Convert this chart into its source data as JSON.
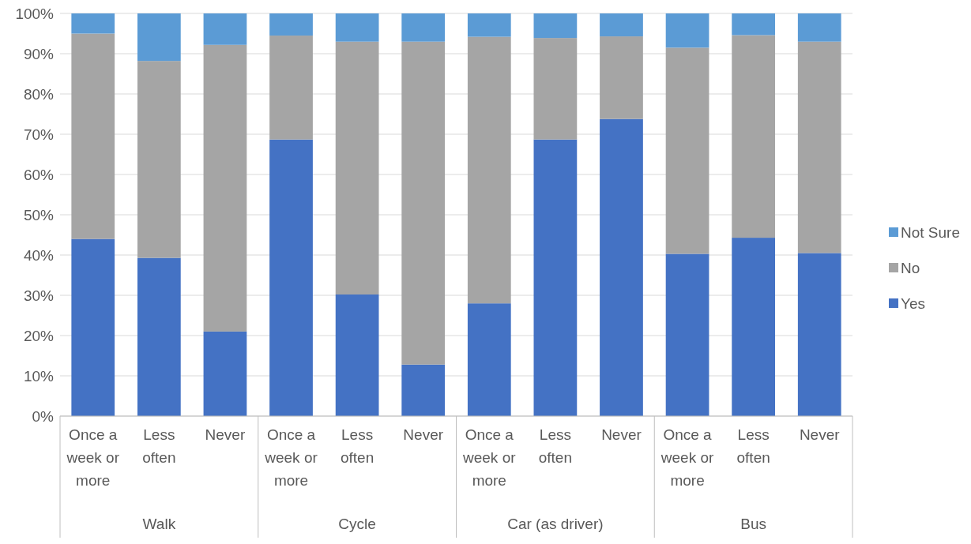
{
  "chart_data": {
    "type": "bar",
    "stacked": true,
    "categories": [
      "Once a week or more",
      "Less often",
      "Never",
      "Once a week or more",
      "Less often",
      "Never",
      "Once a week or more",
      "Less often",
      "Never",
      "Once a week or more",
      "Less often",
      "Never"
    ],
    "series": [
      {
        "name": "Yes",
        "color": "#4472c4",
        "values": [
          44,
          39.3,
          21,
          68.7,
          30.2,
          12.8,
          28,
          68.7,
          73.8,
          40.3,
          44.3,
          40.5
        ]
      },
      {
        "name": "No",
        "color": "#a5a5a5",
        "values": [
          51,
          48.9,
          71.2,
          25.8,
          62.8,
          80.2,
          66.2,
          25.2,
          20.5,
          51.2,
          50.3,
          52.5
        ]
      },
      {
        "name": "Not Sure",
        "color": "#5b9bd5",
        "values": [
          5,
          11.8,
          7.8,
          5.5,
          7,
          7,
          5.8,
          6.1,
          5.7,
          8.5,
          5.4,
          7
        ]
      }
    ],
    "ylim": [
      0,
      100
    ],
    "yticks": [
      {
        "value": 0,
        "label": "0%"
      },
      {
        "value": 10,
        "label": "10%"
      },
      {
        "value": 20,
        "label": "20%"
      },
      {
        "value": 30,
        "label": "30%"
      },
      {
        "value": 40,
        "label": "40%"
      },
      {
        "value": 50,
        "label": "50%"
      },
      {
        "value": 60,
        "label": "60%"
      },
      {
        "value": 70,
        "label": "70%"
      },
      {
        "value": 80,
        "label": "80%"
      },
      {
        "value": 90,
        "label": "90%"
      },
      {
        "value": 100,
        "label": "100%"
      }
    ],
    "grid": "y",
    "legend": "right",
    "annotations": [
      "Walk",
      "Cycle",
      "Car (as driver)",
      "Bus"
    ]
  }
}
